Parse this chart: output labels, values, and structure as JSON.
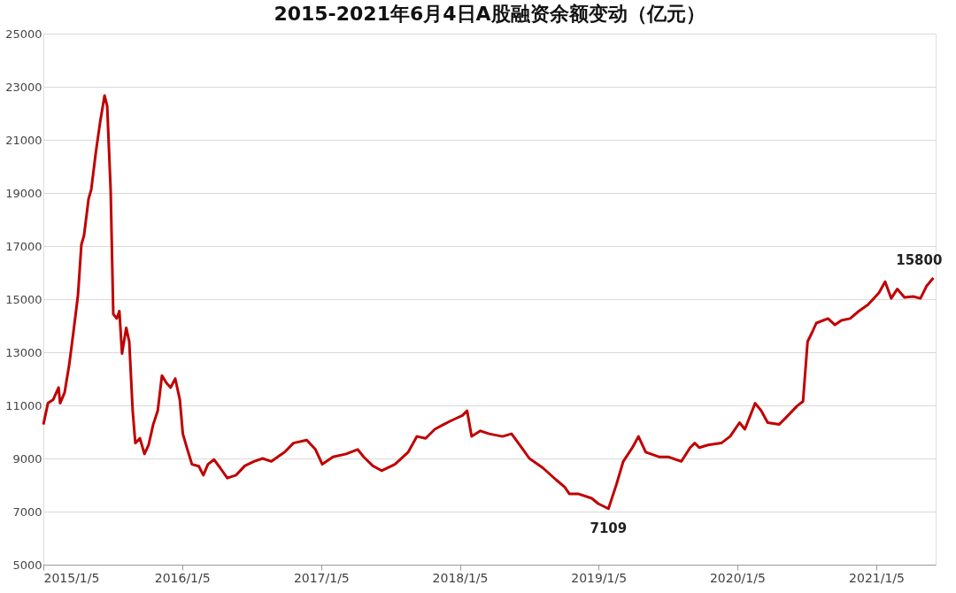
{
  "chart_data": {
    "type": "line",
    "title": "2015-2021年6月4日A股融资余额变动（亿元）",
    "x": [
      "2015-01-05",
      "2015-01-17",
      "2015-01-31",
      "2015-02-14",
      "2015-02-18",
      "2015-03-02",
      "2015-03-14",
      "2015-03-25",
      "2015-04-06",
      "2015-04-15",
      "2015-04-22",
      "2015-05-04",
      "2015-05-11",
      "2015-05-23",
      "2015-06-03",
      "2015-06-15",
      "2015-06-22",
      "2015-07-01",
      "2015-07-08",
      "2015-07-17",
      "2015-07-24",
      "2015-07-31",
      "2015-08-11",
      "2015-08-19",
      "2015-08-28",
      "2015-09-04",
      "2015-09-16",
      "2015-09-28",
      "2015-10-09",
      "2015-10-21",
      "2015-11-02",
      "2015-11-13",
      "2015-11-25",
      "2015-12-06",
      "2015-12-18",
      "2015-12-30",
      "2016-01-07",
      "2016-01-19",
      "2016-01-31",
      "2016-02-18",
      "2016-03-01",
      "2016-03-13",
      "2016-03-29",
      "2016-04-14",
      "2016-05-03",
      "2016-05-26",
      "2016-06-18",
      "2016-07-12",
      "2016-08-04",
      "2016-08-27",
      "2016-10-01",
      "2016-10-24",
      "2016-11-28",
      "2016-12-21",
      "2017-01-08",
      "2017-02-05",
      "2017-03-12",
      "2017-04-11",
      "2017-04-27",
      "2017-05-21",
      "2017-06-13",
      "2017-07-18",
      "2017-08-22",
      "2017-09-14",
      "2017-10-07",
      "2017-10-31",
      "2017-11-23",
      "2017-12-17",
      "2018-01-12",
      "2018-01-24",
      "2018-02-05",
      "2018-02-28",
      "2018-03-23",
      "2018-04-27",
      "2018-05-21",
      "2018-06-13",
      "2018-07-07",
      "2018-08-11",
      "2018-09-15",
      "2018-10-08",
      "2018-10-20",
      "2018-11-12",
      "2018-12-18",
      "2019-01-04",
      "2019-01-31",
      "2019-02-21",
      "2019-03-11",
      "2019-04-04",
      "2019-04-20",
      "2019-05-09",
      "2019-06-13",
      "2019-07-07",
      "2019-08-11",
      "2019-09-03",
      "2019-09-15",
      "2019-09-27",
      "2019-10-20",
      "2019-11-24",
      "2019-12-17",
      "2020-01-11",
      "2020-01-25",
      "2020-02-21",
      "2020-03-08",
      "2020-03-25",
      "2020-04-24",
      "2020-05-11",
      "2020-06-10",
      "2020-06-26",
      "2020-07-08",
      "2020-07-20",
      "2020-07-31",
      "2020-08-31",
      "2020-09-18",
      "2020-10-05",
      "2020-10-28",
      "2020-11-20",
      "2020-12-14",
      "2021-01-12",
      "2021-01-28",
      "2021-02-13",
      "2021-03-01",
      "2021-03-20",
      "2021-04-12",
      "2021-05-01",
      "2021-05-17",
      "2021-06-04"
    ],
    "series": [
      {
        "color": "#c00000",
        "values": [
          10280,
          11080,
          11220,
          11670,
          11080,
          11490,
          12530,
          13750,
          15140,
          17050,
          17400,
          18780,
          19130,
          20520,
          21630,
          22670,
          22260,
          19130,
          14440,
          14270,
          14550,
          12950,
          13920,
          13400,
          10800,
          9580,
          9760,
          9170,
          9510,
          10280,
          10800,
          12120,
          11840,
          11670,
          12010,
          11220,
          9930,
          9340,
          8780,
          8710,
          8370,
          8780,
          8960,
          8650,
          8260,
          8370,
          8720,
          8890,
          9000,
          8890,
          9240,
          9580,
          9690,
          9340,
          8780,
          9060,
          9170,
          9340,
          9060,
          8720,
          8540,
          8780,
          9240,
          9830,
          9760,
          10100,
          10280,
          10450,
          10620,
          10800,
          9830,
          10040,
          9930,
          9830,
          9930,
          9480,
          9000,
          8650,
          8200,
          7920,
          7670,
          7670,
          7500,
          7300,
          7109,
          8020,
          8890,
          9410,
          9830,
          9240,
          9060,
          9060,
          8890,
          9410,
          9580,
          9410,
          9510,
          9580,
          9830,
          10350,
          10100,
          11080,
          10800,
          10350,
          10280,
          10520,
          10970,
          11150,
          13400,
          13750,
          14100,
          14270,
          14030,
          14200,
          14270,
          14550,
          14790,
          15240,
          15660,
          15030,
          15380,
          15070,
          15100,
          15030,
          15490,
          15800
        ]
      }
    ],
    "xlim": [
      "2015-01-05",
      "2021-06-10"
    ],
    "xticks": [
      {
        "value": "2015-01-05",
        "label": "2015/1/5"
      },
      {
        "value": "2016-01-05",
        "label": "2016/1/5"
      },
      {
        "value": "2017-01-05",
        "label": "2017/1/5"
      },
      {
        "value": "2018-01-05",
        "label": "2018/1/5"
      },
      {
        "value": "2019-01-05",
        "label": "2019/1/5"
      },
      {
        "value": "2020-01-05",
        "label": "2020/1/5"
      },
      {
        "value": "2021-01-05",
        "label": "2021/1/5"
      }
    ],
    "ylim": [
      5000,
      25000
    ],
    "yticks": [
      5000,
      7000,
      9000,
      11000,
      13000,
      15000,
      17000,
      19000,
      21000,
      23000,
      25000
    ],
    "grid": "y",
    "legend": false,
    "marker": "none",
    "line_style": "solid",
    "annotations": [
      {
        "text": "7109",
        "x": "2019-01-31",
        "y": 7109
      },
      {
        "text": "15800",
        "x": "2021-06-04",
        "y": 15800
      }
    ]
  }
}
